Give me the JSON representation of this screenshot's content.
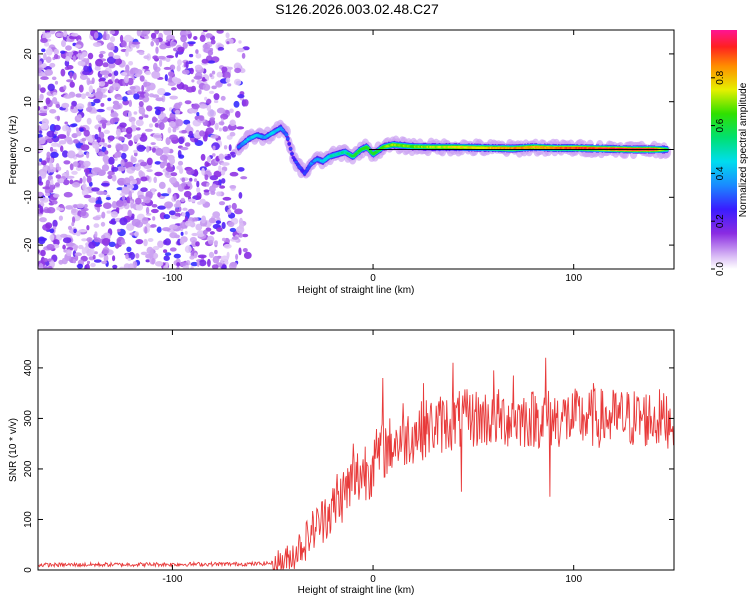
{
  "title": "S126.2026.003.02.48.C27",
  "colors": {
    "trace": "#e83a3a",
    "axis": "#000000"
  },
  "chart_data": [
    {
      "type": "heatmap",
      "xlabel": "Height of straight line (km)",
      "ylabel": "Frequency (Hz)",
      "xlim": [
        -167,
        150
      ],
      "ylim": [
        -25,
        25
      ],
      "xticks": [
        -100,
        0,
        100
      ],
      "xtick_labels": [
        "-100",
        "0",
        "100"
      ],
      "yticks": [
        -20,
        -10,
        0,
        10,
        20
      ],
      "ytick_labels": [
        "-20",
        "-10",
        "0",
        "10",
        "20"
      ],
      "colorbar": {
        "label": "Normalized spectral amplitude",
        "range": [
          0,
          1
        ],
        "ticks": [
          0.0,
          0.2,
          0.4,
          0.6,
          0.8
        ],
        "tick_labels": [
          "0.0",
          "0.2",
          "0.4",
          "0.6",
          "0.8"
        ]
      },
      "noise_region_x": [
        -167,
        -62
      ],
      "signal_track": {
        "x": [
          -67,
          -62,
          -58,
          -54,
          -50,
          -46,
          -43,
          -40,
          -37,
          -34,
          -31,
          -28,
          -25,
          -22,
          -18,
          -14,
          -10,
          -6,
          -3,
          0,
          5,
          10,
          20,
          30,
          40,
          50,
          60,
          70,
          80,
          90,
          100,
          110,
          120,
          130,
          140,
          147
        ],
        "y": [
          0.5,
          2.2,
          3.0,
          2.5,
          3.5,
          4.5,
          3.0,
          -1.5,
          -3.5,
          -5.0,
          -3.0,
          -2.0,
          -2.5,
          -1.5,
          -1.0,
          -0.5,
          -1.5,
          0.0,
          0.5,
          -1.0,
          0.5,
          1.0,
          0.6,
          0.5,
          0.5,
          0.4,
          0.3,
          0.2,
          0.5,
          0.3,
          0.3,
          0.2,
          0.1,
          0.0,
          0.0,
          0.0
        ],
        "intensity": [
          0.35,
          0.45,
          0.45,
          0.4,
          0.45,
          0.4,
          0.3,
          0.25,
          0.3,
          0.3,
          0.35,
          0.4,
          0.45,
          0.5,
          0.55,
          0.55,
          0.6,
          0.65,
          0.7,
          0.6,
          0.7,
          0.75,
          0.7,
          0.75,
          0.8,
          0.8,
          0.85,
          0.9,
          0.85,
          0.9,
          0.95,
          0.95,
          1.0,
          1.0,
          1.0,
          0.6
        ]
      },
      "fit_line": {
        "y": 0.0,
        "x_range": [
          -2,
          150
        ]
      }
    },
    {
      "type": "line",
      "xlabel": "Height of straight line (km)",
      "ylabel": "SNR (10 * v/v)",
      "xlim": [
        -167,
        150
      ],
      "ylim": [
        0,
        475
      ],
      "xticks": [
        -100,
        0,
        100
      ],
      "xtick_labels": [
        "-100",
        "0",
        "100"
      ],
      "yticks": [
        0,
        100,
        200,
        300,
        400
      ],
      "ytick_labels": [
        "0",
        "100",
        "200",
        "300",
        "400"
      ],
      "envelope": {
        "x": [
          -167,
          -60,
          -48,
          -42,
          -38,
          -34,
          -30,
          -25,
          -20,
          -15,
          -10,
          -5,
          0,
          5,
          10,
          20,
          30,
          40,
          50,
          60,
          70,
          80,
          90,
          100,
          110,
          120,
          130,
          140,
          150
        ],
        "y": [
          10,
          12,
          14,
          20,
          40,
          55,
          80,
          100,
          120,
          150,
          175,
          195,
          215,
          235,
          250,
          270,
          285,
          295,
          300,
          300,
          300,
          300,
          300,
          300,
          300,
          300,
          300,
          300,
          300
        ]
      },
      "spikes": [
        {
          "x": -24,
          "y": 140
        },
        {
          "x": -18,
          "y": 190
        },
        {
          "x": -10,
          "y": 250
        },
        {
          "x": 5,
          "y": 380
        },
        {
          "x": 15,
          "y": 330
        },
        {
          "x": 25,
          "y": 370
        },
        {
          "x": 40,
          "y": 410
        },
        {
          "x": 44,
          "y": 155
        },
        {
          "x": 60,
          "y": 395
        },
        {
          "x": 70,
          "y": 385
        },
        {
          "x": 88,
          "y": 475
        },
        {
          "x": 88,
          "y": 145
        },
        {
          "x": 86,
          "y": 420
        },
        {
          "x": 110,
          "y": 370
        },
        {
          "x": 145,
          "y": 350
        }
      ]
    }
  ]
}
